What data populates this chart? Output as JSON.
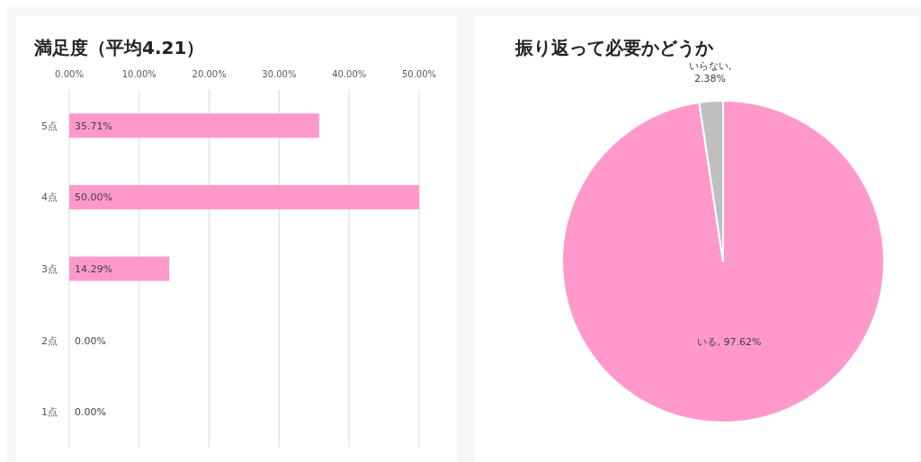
{
  "chart_data": [
    {
      "type": "bar",
      "title": "満足度（平均4.21）",
      "orientation": "horizontal",
      "categories": [
        "5点",
        "4点",
        "3点",
        "2点",
        "1点"
      ],
      "values": [
        35.71,
        50,
        14.29,
        0,
        0
      ],
      "color": "#ff99cc",
      "value_labels": [
        "35.71%",
        "50.00%",
        "14.29%",
        "0.00%",
        "0.00%"
      ],
      "xlim": [
        0,
        50
      ],
      "xticks": [
        {
          "value": 0,
          "label": "0.00%"
        },
        {
          "value": 10,
          "label": "10.00%"
        },
        {
          "value": 20,
          "label": "20.00%"
        },
        {
          "value": 30,
          "label": "30.00%"
        },
        {
          "value": 40,
          "label": "40.00%"
        },
        {
          "value": 50,
          "label": "50.00%"
        }
      ],
      "grid": "x"
    },
    {
      "type": "pie",
      "title": "振り返って必要かどうか",
      "categories": [
        "いる",
        "いらない"
      ],
      "values": [
        97.62,
        2.38
      ],
      "colors": [
        "#ff99cc",
        "#bfbfbf"
      ],
      "value_labels": [
        ", 97.62%",
        ",\n2.38%"
      ]
    }
  ]
}
